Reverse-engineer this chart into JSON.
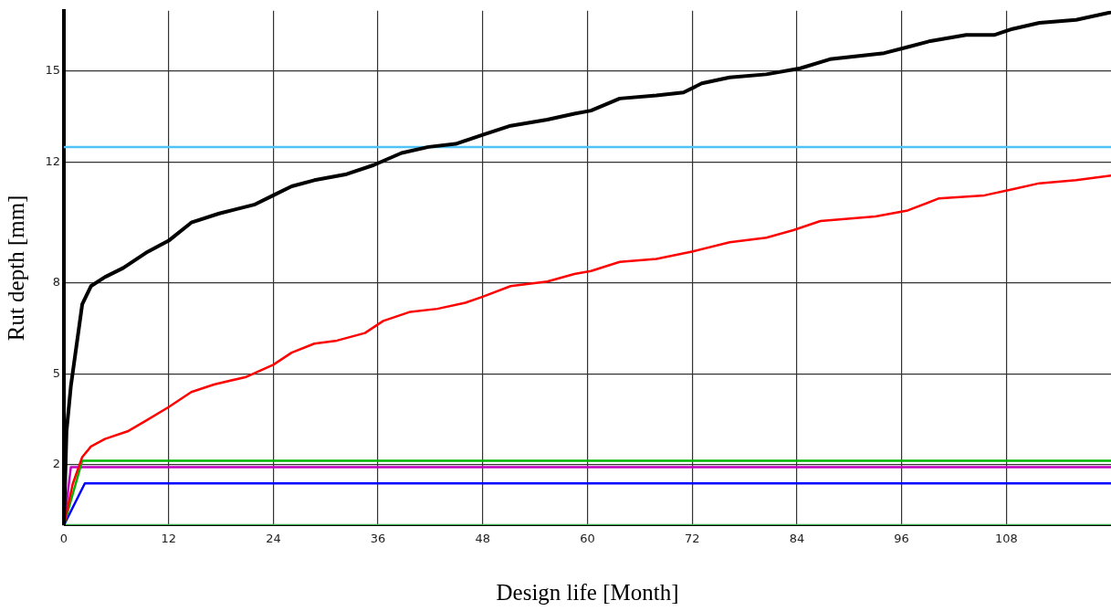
{
  "chart_data": {
    "type": "line",
    "xlabel": "Design life [Month]",
    "ylabel": "Rut depth [mm]",
    "xlim": [
      0,
      120
    ],
    "ylim": [
      0,
      17
    ],
    "xticks": [
      0,
      12,
      24,
      36,
      48,
      60,
      72,
      84,
      96,
      108
    ],
    "yticks": [
      2,
      5,
      8,
      12,
      15
    ],
    "grid": true,
    "legend": false,
    "marker": "none",
    "line_style": "solid",
    "ref_lines": [
      {
        "axis": "y",
        "value": 12.5,
        "color": "#4fc3f7"
      }
    ],
    "series": [
      {
        "color": "#000000",
        "x": [
          0,
          0.3,
          0.8,
          2.1,
          3.1,
          4.7,
          6.8,
          9.4,
          12,
          14.6,
          17.8,
          21.9,
          24,
          26.1,
          28.7,
          32.4,
          35.5,
          38.7,
          41.8,
          44.9,
          48,
          51.2,
          55.4,
          58.5,
          60.4,
          63.7,
          67.9,
          71,
          73.1,
          76.3,
          80.5,
          84.4,
          87.8,
          90.9,
          94,
          96.7,
          99.3,
          103.4,
          106.6,
          108.7,
          111.8,
          116,
          120
        ],
        "values": [
          0,
          3.1,
          4.6,
          7.3,
          7.9,
          8.2,
          8.5,
          9.0,
          9.4,
          10.0,
          10.3,
          10.6,
          10.9,
          11.2,
          11.4,
          11.6,
          11.9,
          12.3,
          12.5,
          12.6,
          12.9,
          13.2,
          13.4,
          13.6,
          13.7,
          14.1,
          14.2,
          14.3,
          14.6,
          14.8,
          14.9,
          15.1,
          15.4,
          15.5,
          15.6,
          15.8,
          16.0,
          16.2,
          16.2,
          16.4,
          16.6,
          16.7,
          16.95
        ]
      },
      {
        "color": "#ff0000",
        "x": [
          0,
          1,
          2.1,
          3.1,
          4.7,
          7.3,
          9.4,
          12,
          14.6,
          17.2,
          20.9,
          24,
          26.1,
          28.7,
          31.3,
          34.5,
          36.6,
          39.7,
          42.8,
          46,
          48,
          51.2,
          55.4,
          58.5,
          60.4,
          63.7,
          67.9,
          72.1,
          76.3,
          80.5,
          83.6,
          86.7,
          93,
          96.7,
          100.3,
          105.5,
          108.7,
          111.8,
          116,
          120
        ],
        "values": [
          0,
          1.35,
          2.25,
          2.6,
          2.85,
          3.1,
          3.45,
          3.9,
          4.4,
          4.65,
          4.9,
          5.3,
          5.7,
          6.0,
          6.1,
          6.35,
          6.75,
          7.05,
          7.15,
          7.35,
          7.55,
          7.9,
          8.05,
          8.3,
          8.4,
          8.7,
          8.8,
          9.05,
          9.35,
          9.5,
          9.75,
          10.05,
          10.2,
          10.4,
          10.8,
          10.9,
          11.1,
          11.3,
          11.4,
          11.55
        ]
      },
      {
        "color": "#00b400",
        "x": [
          0,
          2.1,
          120
        ],
        "values": [
          0,
          2.13,
          2.13
        ]
      },
      {
        "color": "#c000c0",
        "x": [
          0,
          0.8,
          120
        ],
        "values": [
          0,
          1.92,
          1.92
        ]
      },
      {
        "color": "#0000ff",
        "x": [
          0,
          2.4,
          120
        ],
        "values": [
          0,
          1.38,
          1.38
        ]
      },
      {
        "color": "#3cb44b",
        "x": [
          0,
          120
        ],
        "values": [
          0,
          0
        ]
      }
    ]
  }
}
